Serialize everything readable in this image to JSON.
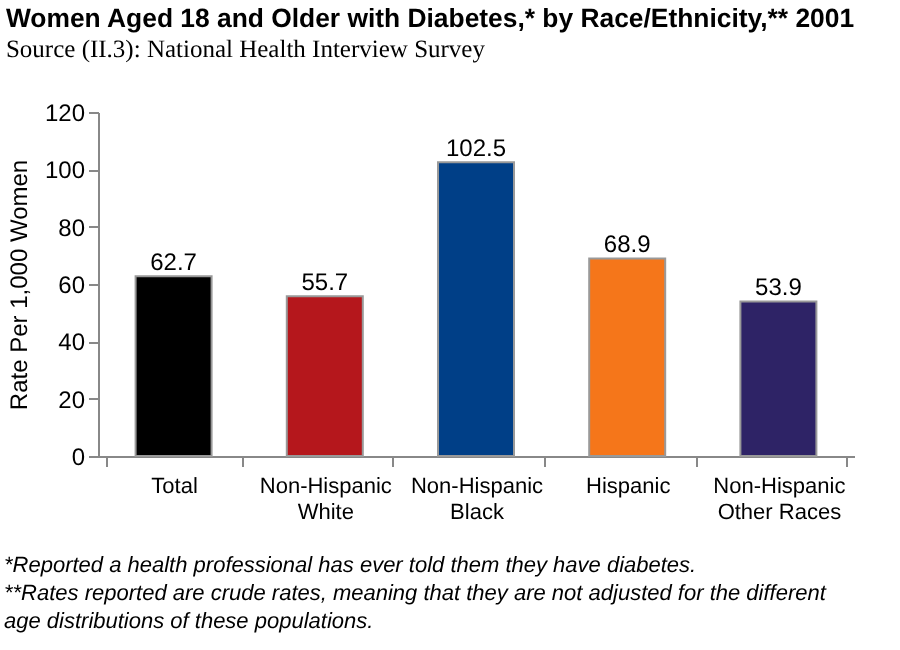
{
  "chart_data": {
    "type": "bar",
    "title": "Women Aged 18 and Older with Diabetes,* by Race/Ethnicity,** 2001",
    "subtitle": "Source (II.3):  National Health Interview Survey",
    "ylabel": "Rate Per 1,000 Women",
    "categories": [
      "Total",
      "Non-Hispanic White",
      "Non-Hispanic Black",
      "Hispanic",
      "Non-Hispanic Other Races"
    ],
    "values": [
      62.7,
      55.7,
      102.5,
      68.9,
      53.9
    ],
    "colors": [
      "#000000",
      "#b5171c",
      "#003f87",
      "#f5761a",
      "#2e2366"
    ],
    "ylim": [
      0,
      120
    ],
    "yticks": [
      0,
      20,
      40,
      60,
      80,
      100,
      120
    ],
    "grid": false,
    "data_labels": true,
    "annotations": [
      "*Reported a health professional has ever told them they have diabetes.",
      "**Rates reported are crude rates, meaning that they are not adjusted for the different age distributions of these populations."
    ]
  }
}
